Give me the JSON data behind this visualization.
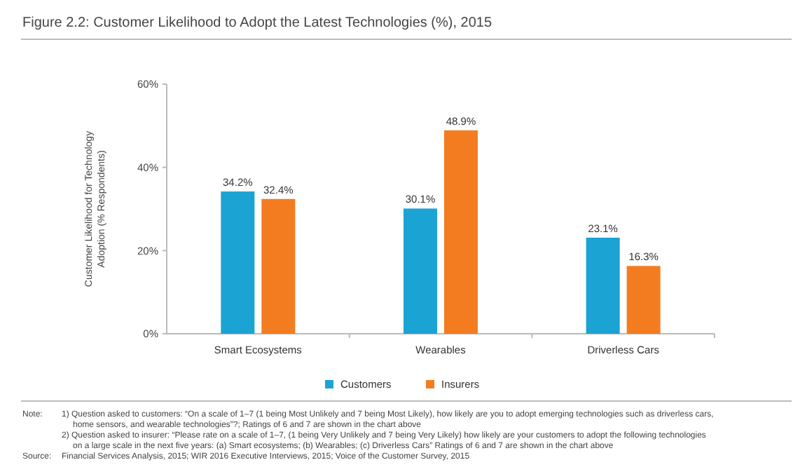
{
  "chart_data": {
    "type": "bar",
    "title": "Figure 2.2: Customer Likelihood to Adopt the Latest Technologies (%), 2015",
    "ylabel": "Customer Likelihood for Technology Adoption (% Respondents)",
    "categories": [
      "Smart Ecosystems",
      "Wearables",
      "Driverless Cars"
    ],
    "series": [
      {
        "name": "Customers",
        "color": "#1ba3d4",
        "values": [
          34.2,
          30.1,
          23.1
        ],
        "value_labels": [
          "34.2%",
          "30.1%",
          "23.1%"
        ]
      },
      {
        "name": "Insurers",
        "color": "#f47c20",
        "values": [
          32.4,
          48.9,
          16.3
        ],
        "value_labels": [
          "32.4%",
          "48.9%",
          "16.3%"
        ]
      }
    ],
    "ylim": [
      0,
      60
    ],
    "yticks": [
      {
        "value": 0,
        "label": "0%"
      },
      {
        "value": 20,
        "label": "20%"
      },
      {
        "value": 40,
        "label": "40%"
      },
      {
        "value": 60,
        "label": "60%"
      }
    ],
    "grid": false,
    "legend": "bottom",
    "annotations": [
      "Note:",
      "1) Question asked to customers: “On a scale of 1–7 (1 being Most Unlikely and 7 being Most Likely), how likely are you to adopt emerging technologies such as driverless cars, home sensors, and wearable technologies”?; Ratings of 6 and 7 are shown in the chart above",
      "2) Question asked to insurer: “Please rate on a scale of 1–7, (1 being Very Unlikely and 7 being Very Likely) how likely are your customers to adopt the following technologies on a large scale in the next five years: (a) Smart ecosystems; (b) Wearables; (c) Driverless Cars” Ratings of 6 and 7 are shown in the chart above",
      "Source:",
      "Financial Services Analysis, 2015; WIR 2016 Executive Interviews, 2015; Voice of the Customer Survey, 2015"
    ]
  }
}
